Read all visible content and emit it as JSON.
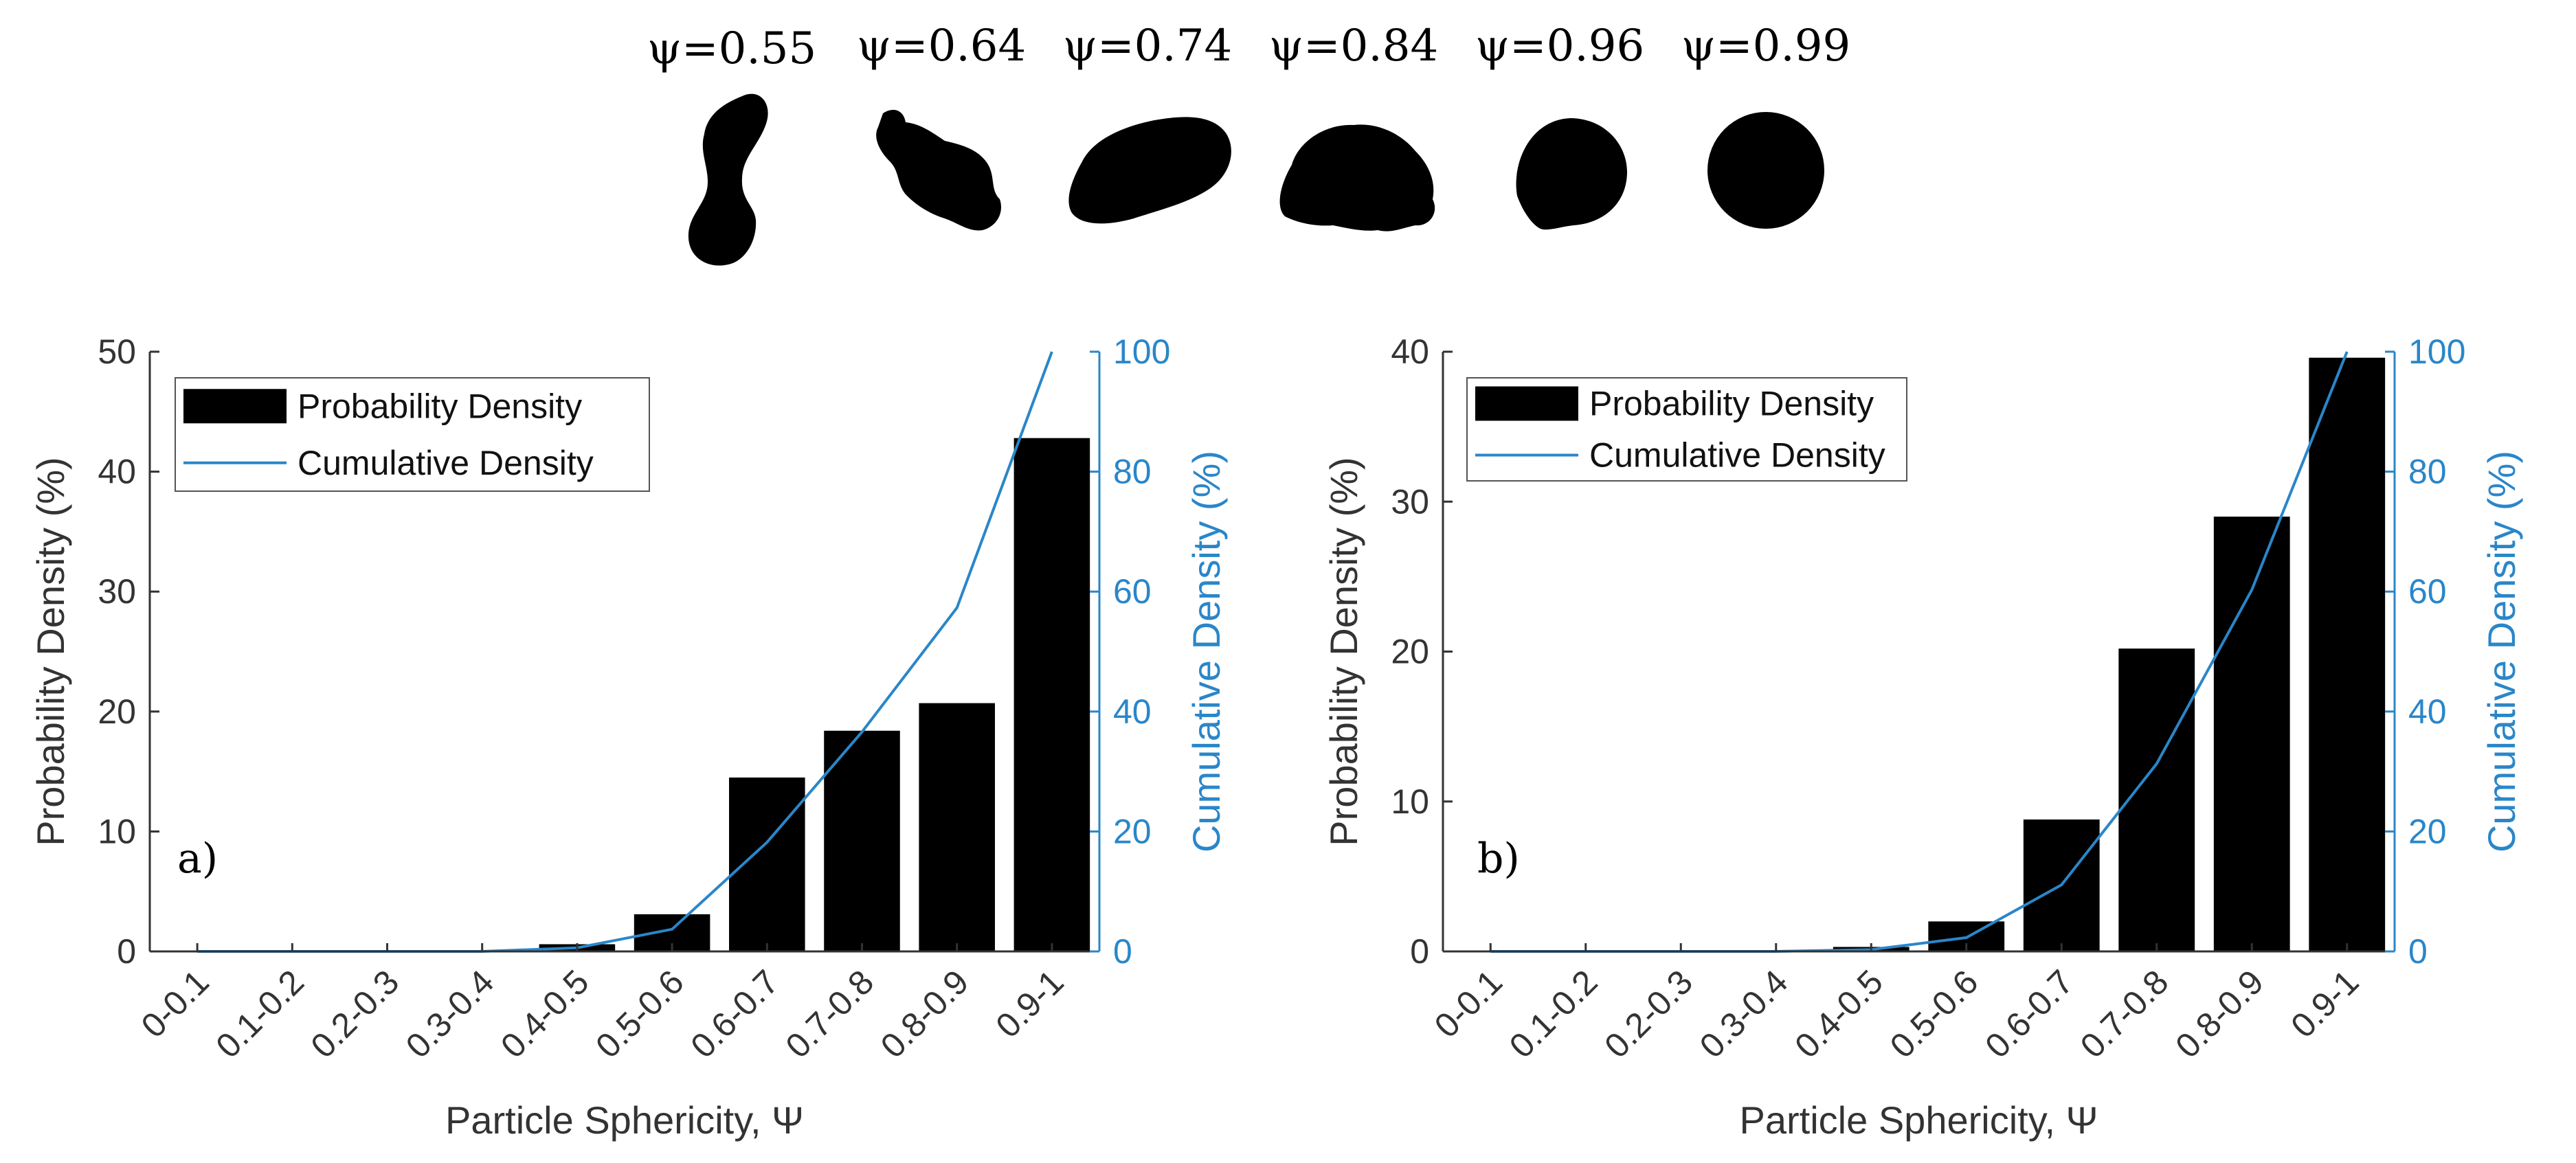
{
  "shapes_row": {
    "labels": [
      "ψ=0.55",
      "ψ=0.64",
      "ψ=0.74",
      "ψ=0.84",
      "ψ=0.96",
      "ψ=0.99"
    ],
    "icons": [
      "elongated-particle-icon",
      "irregular-particle-icon",
      "oblong-particle-icon",
      "rounded-irregular-particle-icon",
      "near-circle-particle-icon",
      "circle-particle-icon"
    ]
  },
  "colors": {
    "bar": "#000000",
    "line": "#2a86c9",
    "axis": "#333333"
  },
  "chart_data": [
    {
      "type": "bar",
      "panel_label": "a)",
      "categories": [
        "0-0.1",
        "0.1-0.2",
        "0.2-0.3",
        "0.3-0.4",
        "0.4-0.5",
        "0.5-0.6",
        "0.6-0.7",
        "0.7-0.8",
        "0.8-0.9",
        "0.9-1"
      ],
      "series": [
        {
          "name": "Probability Density",
          "type": "bar",
          "axis": "left",
          "values": [
            0,
            0,
            0,
            0,
            0.6,
            3.1,
            14.5,
            18.4,
            20.7,
            42.8
          ]
        },
        {
          "name": "Cumulative Density",
          "type": "line",
          "axis": "right",
          "values": [
            0,
            0,
            0,
            0,
            0.6,
            3.7,
            18.2,
            36.6,
            57.3,
            100
          ]
        }
      ],
      "xlabel": "Particle Sphericity, Ψ",
      "ylabel": "Probability Density (%)",
      "y2label": "Cumulative Density (%)",
      "ylim": [
        0,
        50
      ],
      "yticks": [
        "0",
        "10",
        "20",
        "30",
        "40",
        "50"
      ],
      "y2lim": [
        0,
        100
      ],
      "y2ticks": [
        "0",
        "20",
        "40",
        "60",
        "80",
        "100"
      ],
      "legend": [
        "Probability Density",
        "Cumulative Density"
      ],
      "legend_position": "top-left"
    },
    {
      "type": "bar",
      "panel_label": "b)",
      "categories": [
        "0-0.1",
        "0.1-0.2",
        "0.2-0.3",
        "0.3-0.4",
        "0.4-0.5",
        "0.5-0.6",
        "0.6-0.7",
        "0.7-0.8",
        "0.8-0.9",
        "0.9-1"
      ],
      "series": [
        {
          "name": "Probability Density",
          "type": "bar",
          "axis": "left",
          "values": [
            0,
            0,
            0,
            0,
            0.3,
            2.0,
            8.8,
            20.2,
            29.0,
            39.6
          ]
        },
        {
          "name": "Cumulative Density",
          "type": "line",
          "axis": "right",
          "values": [
            0,
            0,
            0,
            0,
            0.3,
            2.3,
            11.1,
            31.3,
            60.3,
            100
          ]
        }
      ],
      "xlabel": "Particle Sphericity, Ψ",
      "ylabel": "Probability Density (%)",
      "y2label": "Cumulative Density (%)",
      "ylim": [
        0,
        40
      ],
      "yticks": [
        "0",
        "10",
        "20",
        "30",
        "40"
      ],
      "y2lim": [
        0,
        100
      ],
      "y2ticks": [
        "0",
        "20",
        "40",
        "60",
        "80",
        "100"
      ],
      "legend": [
        "Probability Density",
        "Cumulative Density"
      ],
      "legend_position": "top-left"
    }
  ]
}
